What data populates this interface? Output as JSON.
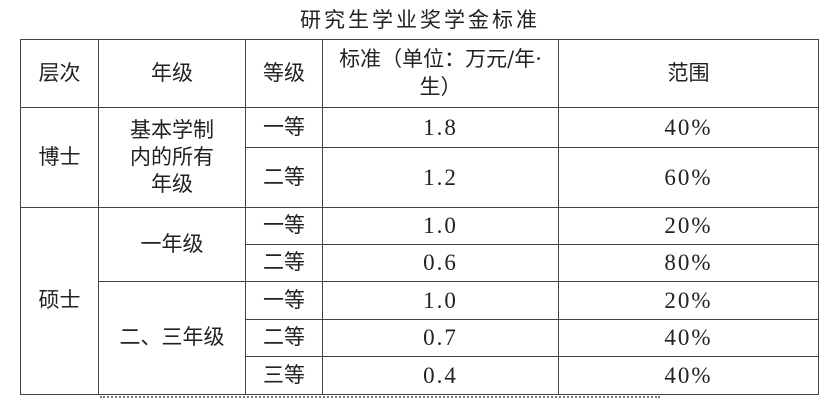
{
  "title": "研究生学业奖学金标准",
  "headers": [
    "层次",
    "年级",
    "等级",
    "标准（单位：万元/年·生）",
    "范围"
  ],
  "groups": [
    {
      "level": "博士",
      "grades": [
        {
          "grade": "基本学制内的所有年级",
          "rows": [
            {
              "tier": "一等",
              "amount": "1.8",
              "ratio": "40%"
            },
            {
              "tier": "二等",
              "amount": "1.2",
              "ratio": "60%"
            }
          ]
        }
      ]
    },
    {
      "level": "硕士",
      "grades": [
        {
          "grade": "一年级",
          "rows": [
            {
              "tier": "一等",
              "amount": "1.0",
              "ratio": "20%"
            },
            {
              "tier": "二等",
              "amount": "0.6",
              "ratio": "80%"
            }
          ]
        },
        {
          "grade": "二、三年级",
          "rows": [
            {
              "tier": "一等",
              "amount": "1.0",
              "ratio": "20%"
            },
            {
              "tier": "二等",
              "amount": "0.7",
              "ratio": "40%"
            },
            {
              "tier": "三等",
              "amount": "0.4",
              "ratio": "40%"
            }
          ]
        }
      ]
    }
  ]
}
